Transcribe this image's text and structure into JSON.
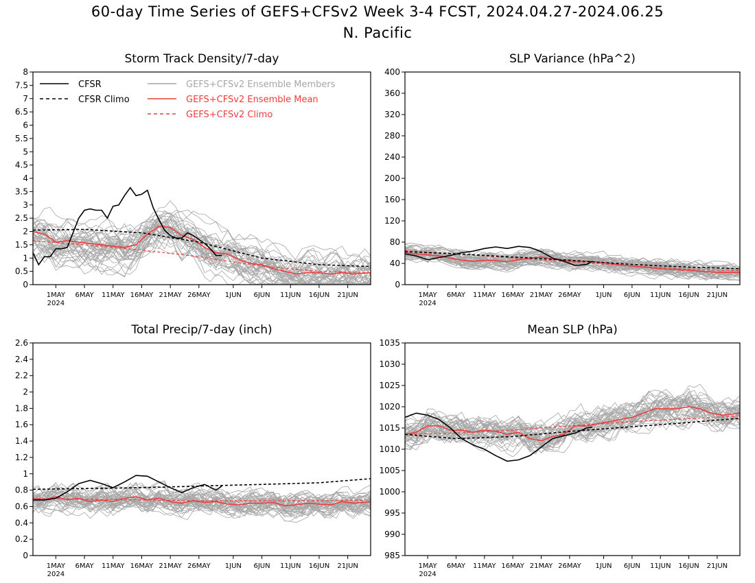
{
  "figure": {
    "title": "60-day Time Series of GEFS+CFSv2 Week 3-4 FCST, 2024.04.27-2024.06.25",
    "subtitle": "N. Pacific"
  },
  "colors": {
    "members": "#a6a6a6",
    "ensemble_mean": "#ef3c3c",
    "cfsr": "#000000",
    "axes": "#000000"
  },
  "legend": [
    {
      "label": "CFSR",
      "style": "solid",
      "color": "#000000"
    },
    {
      "label": "CFSR Climo",
      "style": "dashed",
      "color": "#000000"
    },
    {
      "label": "GEFS+CFSv2 Ensemble Members",
      "style": "solid",
      "color": "#a6a6a6"
    },
    {
      "label": "GEFS+CFSv2 Ensemble Mean",
      "style": "solid",
      "color": "#ef3c3c"
    },
    {
      "label": "GEFS+CFSv2 Climo",
      "style": "dashed",
      "color": "#ef3c3c"
    }
  ],
  "x_axis": {
    "start_date": "2024-04-27",
    "end_date": "2024-06-25",
    "ticks": [
      {
        "date": "2024-05-01",
        "label": "1MAY",
        "sub": "2024"
      },
      {
        "date": "2024-05-06",
        "label": "6MAY",
        "sub": ""
      },
      {
        "date": "2024-05-11",
        "label": "11MAY",
        "sub": ""
      },
      {
        "date": "2024-05-16",
        "label": "16MAY",
        "sub": ""
      },
      {
        "date": "2024-05-21",
        "label": "21MAY",
        "sub": ""
      },
      {
        "date": "2024-05-26",
        "label": "26MAY",
        "sub": ""
      },
      {
        "date": "2024-06-01",
        "label": "1JUN",
        "sub": ""
      },
      {
        "date": "2024-06-06",
        "label": "6JUN",
        "sub": ""
      },
      {
        "date": "2024-06-11",
        "label": "11JUN",
        "sub": ""
      },
      {
        "date": "2024-06-16",
        "label": "16JUN",
        "sub": ""
      },
      {
        "date": "2024-06-21",
        "label": "21JUN",
        "sub": ""
      }
    ]
  },
  "chart_data": [
    {
      "type": "line",
      "title": "Storm Track Density/7-day",
      "ylim": [
        0,
        8
      ],
      "yticks": [
        "0",
        "0.5",
        "1",
        "1.5",
        "2",
        "2.5",
        "3",
        "3.5",
        "4",
        "4.5",
        "5",
        "5.5",
        "6",
        "6.5",
        "7",
        "7.5",
        "8"
      ],
      "has_legend": true,
      "members": {
        "count": 40,
        "spread": 0.85,
        "noise": 0.35,
        "seed": 11
      },
      "series": [
        {
          "name": "CFSR",
          "dates": [
            "2024-04-27",
            "2024-04-28",
            "2024-04-29",
            "2024-04-30",
            "2024-05-01",
            "2024-05-02",
            "2024-05-03",
            "2024-05-04",
            "2024-05-05",
            "2024-05-06",
            "2024-05-07",
            "2024-05-08",
            "2024-05-09",
            "2024-05-10",
            "2024-05-11",
            "2024-05-12",
            "2024-05-13",
            "2024-05-14",
            "2024-05-15",
            "2024-05-16",
            "2024-05-17",
            "2024-05-18",
            "2024-05-19",
            "2024-05-20",
            "2024-05-21",
            "2024-05-22",
            "2024-05-23",
            "2024-05-24",
            "2024-05-25",
            "2024-05-26",
            "2024-05-27",
            "2024-05-28",
            "2024-05-29",
            "2024-05-30"
          ],
          "values": [
            1.2,
            0.75,
            1.05,
            1.05,
            1.35,
            1.35,
            1.4,
            1.95,
            2.5,
            2.8,
            2.85,
            2.8,
            2.8,
            2.5,
            2.95,
            3.0,
            3.35,
            3.65,
            3.35,
            3.4,
            3.55,
            2.9,
            2.45,
            2.05,
            1.85,
            1.75,
            1.75,
            1.95,
            1.85,
            1.7,
            1.55,
            1.35,
            1.1,
            1.1
          ]
        },
        {
          "name": "CFSR Climo",
          "dates": [
            "2024-04-27",
            "2024-05-06",
            "2024-05-16",
            "2024-05-26",
            "2024-06-06",
            "2024-06-16",
            "2024-06-25"
          ],
          "values": [
            2.05,
            2.08,
            1.95,
            1.6,
            1.0,
            0.75,
            0.68
          ]
        },
        {
          "name": "GEFS+CFSv2 Ensemble Mean",
          "dates": [
            "2024-04-27",
            "2024-04-29",
            "2024-05-01",
            "2024-05-03",
            "2024-05-05",
            "2024-05-07",
            "2024-05-09",
            "2024-05-11",
            "2024-05-13",
            "2024-05-15",
            "2024-05-17",
            "2024-05-19",
            "2024-05-21",
            "2024-05-23",
            "2024-05-25",
            "2024-05-27",
            "2024-05-29",
            "2024-05-31",
            "2024-06-02",
            "2024-06-04",
            "2024-06-06",
            "2024-06-08",
            "2024-06-10",
            "2024-06-12",
            "2024-06-14",
            "2024-06-16",
            "2024-06-18",
            "2024-06-20",
            "2024-06-22",
            "2024-06-25"
          ],
          "values": [
            2.0,
            1.9,
            1.6,
            1.65,
            1.6,
            1.55,
            1.5,
            1.45,
            1.4,
            1.5,
            1.9,
            2.2,
            2.15,
            1.85,
            1.7,
            1.4,
            1.2,
            1.15,
            0.95,
            0.8,
            0.75,
            0.6,
            0.5,
            0.4,
            0.45,
            0.45,
            0.4,
            0.45,
            0.4,
            0.45
          ]
        },
        {
          "name": "GEFS+CFSv2 Climo",
          "dates": [
            "2024-04-27",
            "2024-05-06",
            "2024-05-16",
            "2024-05-26",
            "2024-06-06",
            "2024-06-16",
            "2024-06-25"
          ],
          "values": [
            1.65,
            1.5,
            1.3,
            1.05,
            0.7,
            0.5,
            0.45
          ]
        }
      ]
    },
    {
      "type": "line",
      "title": "SLP Variance (hPa^2)",
      "ylim": [
        0,
        400
      ],
      "yticks": [
        "0",
        "40",
        "80",
        "120",
        "160",
        "200",
        "240",
        "280",
        "320",
        "360",
        "400"
      ],
      "has_legend": false,
      "members": {
        "count": 40,
        "spread": 14,
        "noise": 8,
        "seed": 23
      },
      "series": [
        {
          "name": "CFSR",
          "dates": [
            "2024-04-27",
            "2024-04-29",
            "2024-05-01",
            "2024-05-03",
            "2024-05-05",
            "2024-05-07",
            "2024-05-09",
            "2024-05-11",
            "2024-05-13",
            "2024-05-15",
            "2024-05-17",
            "2024-05-19",
            "2024-05-21",
            "2024-05-23",
            "2024-05-25",
            "2024-05-27",
            "2024-05-29",
            "2024-05-30"
          ],
          "values": [
            58,
            54,
            47,
            51,
            55,
            60,
            63,
            68,
            71,
            68,
            72,
            70,
            62,
            50,
            44,
            36,
            38,
            44
          ]
        },
        {
          "name": "CFSR Climo",
          "dates": [
            "2024-04-27",
            "2024-05-06",
            "2024-05-16",
            "2024-05-26",
            "2024-06-06",
            "2024-06-16",
            "2024-06-25"
          ],
          "values": [
            62,
            58,
            52,
            46,
            38,
            33,
            30
          ]
        },
        {
          "name": "GEFS+CFSv2 Ensemble Mean",
          "dates": [
            "2024-04-27",
            "2024-04-29",
            "2024-05-01",
            "2024-05-03",
            "2024-05-05",
            "2024-05-07",
            "2024-05-09",
            "2024-05-11",
            "2024-05-13",
            "2024-05-15",
            "2024-05-17",
            "2024-05-19",
            "2024-05-21",
            "2024-05-23",
            "2024-05-25",
            "2024-05-27",
            "2024-05-29",
            "2024-05-31",
            "2024-06-02",
            "2024-06-04",
            "2024-06-06",
            "2024-06-08",
            "2024-06-10",
            "2024-06-12",
            "2024-06-14",
            "2024-06-16",
            "2024-06-18",
            "2024-06-20",
            "2024-06-22",
            "2024-06-25"
          ],
          "values": [
            60,
            58,
            56,
            54,
            50,
            46,
            44,
            46,
            45,
            43,
            47,
            50,
            52,
            48,
            46,
            44,
            44,
            42,
            40,
            37,
            35,
            33,
            31,
            29,
            28,
            27,
            25,
            24,
            23,
            23
          ]
        },
        {
          "name": "GEFS+CFSv2 Climo",
          "dates": [
            "2024-04-27",
            "2024-05-06",
            "2024-05-16",
            "2024-05-26",
            "2024-06-06",
            "2024-06-16",
            "2024-06-25"
          ],
          "values": [
            64,
            58,
            50,
            43,
            35,
            29,
            26
          ]
        }
      ]
    },
    {
      "type": "line",
      "title": "Total Precip/7-day (inch)",
      "ylim": [
        0,
        2.6
      ],
      "yticks": [
        "0",
        "0.2",
        "0.4",
        "0.6",
        "0.8",
        "1",
        "1.2",
        "1.4",
        "1.6",
        "1.8",
        "2",
        "2.2",
        "2.4",
        "2.6"
      ],
      "has_legend": false,
      "members": {
        "count": 40,
        "spread": 0.12,
        "noise": 0.09,
        "seed": 37
      },
      "series": [
        {
          "name": "CFSR",
          "dates": [
            "2024-04-27",
            "2024-04-29",
            "2024-05-01",
            "2024-05-03",
            "2024-05-05",
            "2024-05-07",
            "2024-05-09",
            "2024-05-11",
            "2024-05-13",
            "2024-05-15",
            "2024-05-17",
            "2024-05-19",
            "2024-05-21",
            "2024-05-23",
            "2024-05-25",
            "2024-05-27",
            "2024-05-29",
            "2024-05-30"
          ],
          "values": [
            0.68,
            0.68,
            0.7,
            0.78,
            0.88,
            0.92,
            0.88,
            0.83,
            0.9,
            0.98,
            0.97,
            0.9,
            0.83,
            0.77,
            0.83,
            0.87,
            0.8,
            0.85
          ]
        },
        {
          "name": "CFSR Climo",
          "dates": [
            "2024-04-27",
            "2024-05-06",
            "2024-05-16",
            "2024-05-26",
            "2024-06-06",
            "2024-06-16",
            "2024-06-25"
          ],
          "values": [
            0.81,
            0.82,
            0.83,
            0.85,
            0.87,
            0.89,
            0.94
          ]
        },
        {
          "name": "GEFS+CFSv2 Ensemble Mean",
          "dates": [
            "2024-04-27",
            "2024-04-29",
            "2024-05-01",
            "2024-05-03",
            "2024-05-05",
            "2024-05-07",
            "2024-05-09",
            "2024-05-11",
            "2024-05-13",
            "2024-05-15",
            "2024-05-17",
            "2024-05-19",
            "2024-05-21",
            "2024-05-23",
            "2024-05-25",
            "2024-05-27",
            "2024-05-29",
            "2024-05-31",
            "2024-06-02",
            "2024-06-04",
            "2024-06-06",
            "2024-06-08",
            "2024-06-10",
            "2024-06-12",
            "2024-06-14",
            "2024-06-16",
            "2024-06-18",
            "2024-06-20",
            "2024-06-22",
            "2024-06-25"
          ],
          "values": [
            0.7,
            0.68,
            0.72,
            0.68,
            0.7,
            0.66,
            0.68,
            0.66,
            0.7,
            0.72,
            0.68,
            0.7,
            0.66,
            0.64,
            0.67,
            0.65,
            0.66,
            0.63,
            0.62,
            0.64,
            0.64,
            0.65,
            0.61,
            0.62,
            0.64,
            0.63,
            0.62,
            0.66,
            0.64,
            0.66
          ]
        },
        {
          "name": "GEFS+CFSv2 Climo",
          "dates": [
            "2024-04-27",
            "2024-05-06",
            "2024-05-16",
            "2024-05-26",
            "2024-06-06",
            "2024-06-16",
            "2024-06-25"
          ],
          "values": [
            0.7,
            0.69,
            0.68,
            0.67,
            0.67,
            0.67,
            0.68
          ]
        }
      ]
    },
    {
      "type": "line",
      "title": "Mean SLP (hPa)",
      "ylim": [
        985,
        1035
      ],
      "yticks": [
        "985",
        "990",
        "995",
        "1000",
        "1005",
        "1010",
        "1015",
        "1020",
        "1025",
        "1030",
        "1035"
      ],
      "has_legend": false,
      "members": {
        "count": 40,
        "spread": 3.2,
        "noise": 2.0,
        "seed": 53
      },
      "series": [
        {
          "name": "CFSR",
          "dates": [
            "2024-04-27",
            "2024-04-29",
            "2024-05-01",
            "2024-05-03",
            "2024-05-05",
            "2024-05-07",
            "2024-05-09",
            "2024-05-11",
            "2024-05-13",
            "2024-05-15",
            "2024-05-17",
            "2024-05-19",
            "2024-05-21",
            "2024-05-23",
            "2024-05-25",
            "2024-05-27",
            "2024-05-29",
            "2024-05-30"
          ],
          "values": [
            1017.5,
            1018.5,
            1018.0,
            1017.0,
            1015.0,
            1012.5,
            1011.0,
            1010.0,
            1008.5,
            1007.2,
            1007.5,
            1008.5,
            1010.5,
            1012.5,
            1013.2,
            1013.8,
            1015.0,
            1015.2
          ]
        },
        {
          "name": "CFSR Climo",
          "dates": [
            "2024-04-27",
            "2024-05-06",
            "2024-05-16",
            "2024-05-26",
            "2024-06-06",
            "2024-06-16",
            "2024-06-25"
          ],
          "values": [
            1013.5,
            1012.5,
            1013.0,
            1014.2,
            1015.3,
            1016.3,
            1017.3
          ]
        },
        {
          "name": "GEFS+CFSv2 Ensemble Mean",
          "dates": [
            "2024-04-27",
            "2024-04-29",
            "2024-05-01",
            "2024-05-03",
            "2024-05-05",
            "2024-05-07",
            "2024-05-09",
            "2024-05-11",
            "2024-05-13",
            "2024-05-15",
            "2024-05-17",
            "2024-05-19",
            "2024-05-21",
            "2024-05-23",
            "2024-05-25",
            "2024-05-27",
            "2024-05-29",
            "2024-05-31",
            "2024-06-02",
            "2024-06-04",
            "2024-06-06",
            "2024-06-08",
            "2024-06-10",
            "2024-06-12",
            "2024-06-14",
            "2024-06-16",
            "2024-06-18",
            "2024-06-20",
            "2024-06-22",
            "2024-06-25"
          ],
          "values": [
            1013.5,
            1014.0,
            1015.5,
            1015.5,
            1014.5,
            1014.5,
            1014.0,
            1014.5,
            1014.2,
            1013.5,
            1014.0,
            1012.5,
            1012.0,
            1013.0,
            1013.5,
            1015.5,
            1015.5,
            1016.0,
            1016.5,
            1017.0,
            1017.5,
            1018.5,
            1019.5,
            1019.5,
            1019.5,
            1020.0,
            1019.5,
            1018.5,
            1018.0,
            1018.5
          ]
        },
        {
          "name": "GEFS+CFSv2 Climo",
          "dates": [
            "2024-04-27",
            "2024-05-06",
            "2024-05-16",
            "2024-05-26",
            "2024-06-06",
            "2024-06-16",
            "2024-06-25"
          ],
          "values": [
            1013.5,
            1013.8,
            1014.5,
            1015.5,
            1016.5,
            1017.2,
            1017.8
          ]
        }
      ]
    }
  ]
}
